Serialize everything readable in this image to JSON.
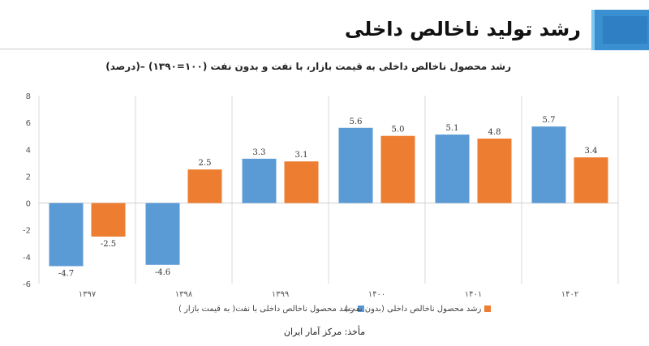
{
  "header": {
    "title": "رشد تولید ناخالص داخلی"
  },
  "chart_data": {
    "type": "bar",
    "title": "رشد محصول ناخالص داخلی به قیمت بازار، با نفت و بدون نفت (۱۰۰=۱۳۹۰) –(درصد)",
    "categories": [
      "۱۳۹۷",
      "۱۳۹۸",
      "۱۳۹۹",
      "۱۴۰۰",
      "۱۴۰۱",
      "۱۴۰۲"
    ],
    "series": [
      {
        "name": "رشد محصول ناخالص داخلی با نفت( به قیمت بازار )",
        "color": "#5b9bd5",
        "values": [
          -4.7,
          -4.6,
          3.3,
          5.6,
          5.1,
          5.7
        ]
      },
      {
        "name": "رشد محصول ناخالص داخلی (بدون نفت)",
        "color": "#ed7d31",
        "values": [
          -2.5,
          2.5,
          3.1,
          5.0,
          4.8,
          3.4
        ]
      }
    ],
    "ylim": [
      -6,
      8
    ],
    "yticks": [
      -6,
      -4,
      -2,
      0,
      2,
      4,
      6,
      8
    ],
    "xlabel": "",
    "ylabel": "",
    "source": "مأخذ: مرکز آمار ایران"
  }
}
